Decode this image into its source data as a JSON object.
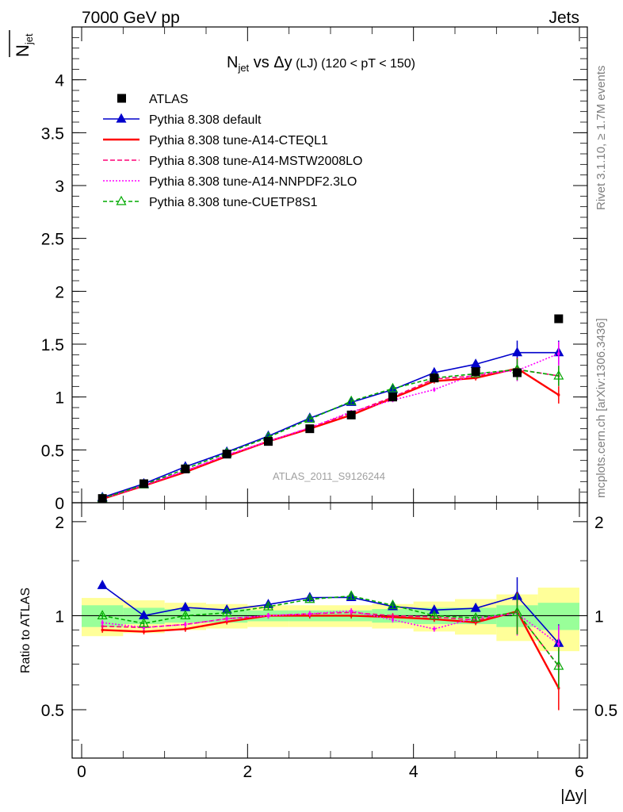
{
  "header": {
    "left": "7000 GeV pp",
    "right": "Jets",
    "side_top": "Rivet 3.1.10, ≥ 1.7M events",
    "side_bottom": "mcplots.cern.ch [arXiv:1306.3436]",
    "watermark": "ATLAS_2011_S9126244"
  },
  "chart_data": {
    "type": "line",
    "title_main": "N",
    "title_sub": "jet",
    "title_rest": " vs Δy",
    "title_small": " (LJ) (120 < pT < 150)",
    "ylabel_main": "N",
    "ylabel_sub": "jet",
    "ratio_ylabel": "Ratio to ATLAS",
    "xlabel": "|Δy|",
    "xlim": [
      0,
      6
    ],
    "ylim": [
      0,
      4.5
    ],
    "ratio_ylim": [
      0.35,
      2.3
    ],
    "x_ticks": [
      "0",
      "2",
      "4",
      "6"
    ],
    "y_ticks": [
      "0",
      "0.5",
      "1",
      "1.5",
      "2",
      "2.5",
      "3",
      "3.5",
      "4"
    ],
    "ratio_ticks": [
      "0.5",
      "1",
      "2"
    ],
    "x": [
      0.25,
      0.75,
      1.25,
      1.75,
      2.25,
      2.75,
      3.25,
      3.75,
      4.25,
      4.75,
      5.25,
      5.75
    ],
    "data": {
      "name": "ATLAS",
      "values": [
        0.04,
        0.18,
        0.32,
        0.46,
        0.58,
        0.7,
        0.83,
        1.0,
        1.18,
        1.24,
        1.23,
        1.74
      ],
      "band_inner": [
        0.08,
        0.06,
        0.05,
        0.05,
        0.04,
        0.04,
        0.04,
        0.05,
        0.06,
        0.06,
        0.08,
        0.1
      ],
      "band_outer": [
        0.14,
        0.12,
        0.1,
        0.09,
        0.08,
        0.08,
        0.08,
        0.09,
        0.11,
        0.13,
        0.17,
        0.23
      ]
    },
    "series": [
      {
        "name": "Pythia 8.308 default",
        "color": "#0000cc",
        "dash": "",
        "marker": "triangle-filled",
        "values": [
          0.05,
          0.18,
          0.34,
          0.48,
          0.63,
          0.8,
          0.95,
          1.07,
          1.23,
          1.31,
          1.42,
          1.42
        ]
      },
      {
        "name": "Pythia 8.308 tune-A14-CTEQL1",
        "color": "#ff0000",
        "dash": "",
        "marker": "none",
        "values": [
          0.036,
          0.16,
          0.29,
          0.44,
          0.58,
          0.7,
          0.83,
          0.99,
          1.15,
          1.18,
          1.27,
          1.02
        ]
      },
      {
        "name": "Pythia 8.308 tune-A14-MSTW2008LO",
        "color": "#ff0077",
        "dash": "6,3",
        "marker": "none",
        "values": [
          0.037,
          0.165,
          0.3,
          0.45,
          0.58,
          0.71,
          0.85,
          1.0,
          1.17,
          1.2,
          1.26,
          1.2
        ]
      },
      {
        "name": "Pythia 8.308 tune-A14-NNPDF2.3LO",
        "color": "#ff00ff",
        "dash": "2,2",
        "marker": "none",
        "values": [
          0.038,
          0.165,
          0.3,
          0.45,
          0.58,
          0.71,
          0.86,
          0.97,
          1.07,
          1.22,
          1.25,
          1.41
        ]
      },
      {
        "name": "Pythia 8.308 tune-CUETP8S1",
        "color": "#00aa00",
        "dash": "5,3",
        "marker": "triangle-open",
        "values": [
          0.04,
          0.17,
          0.32,
          0.47,
          0.62,
          0.79,
          0.96,
          1.08,
          1.18,
          1.22,
          1.26,
          1.2
        ]
      }
    ],
    "legend_position": "top-left"
  }
}
